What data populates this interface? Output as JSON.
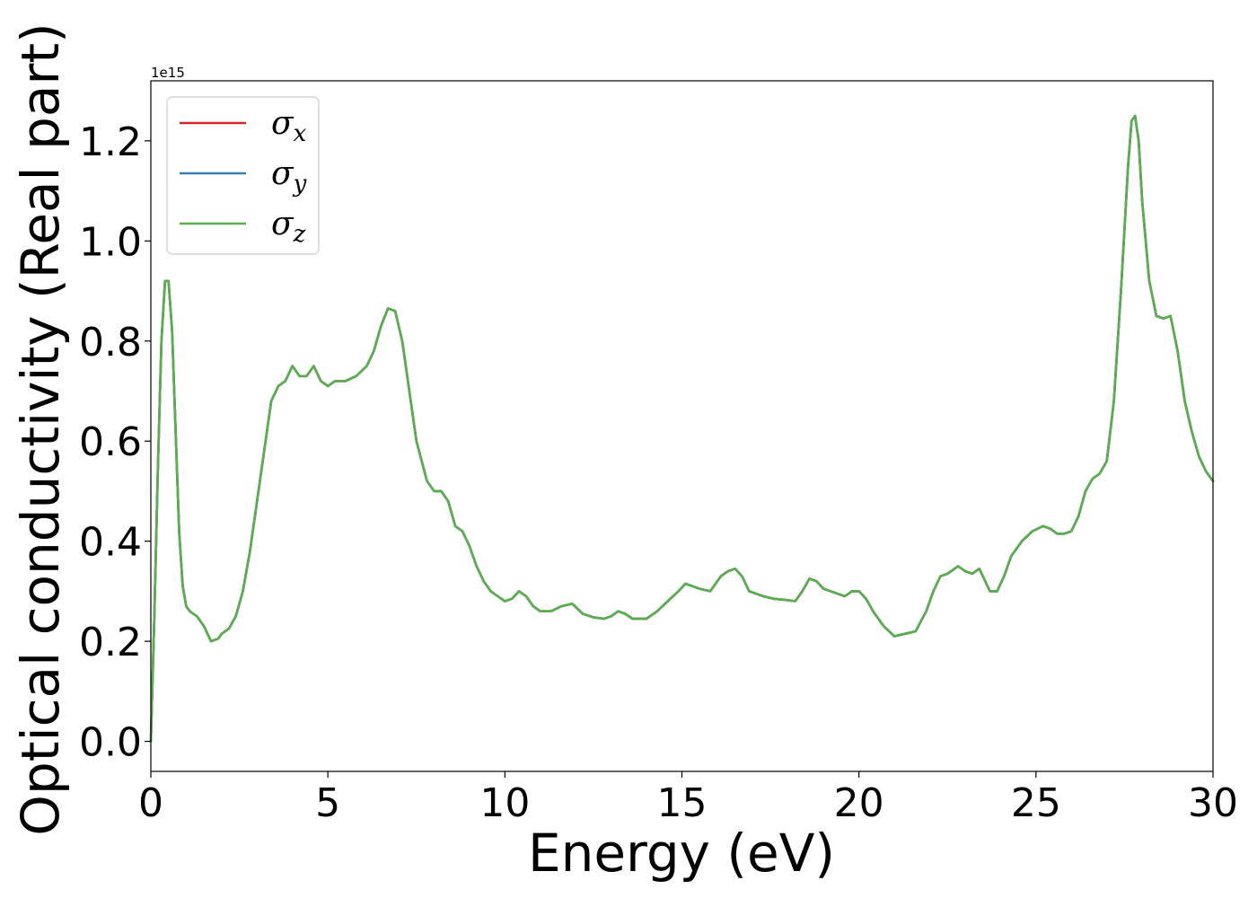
{
  "chart_data": {
    "type": "line",
    "xlabel": "Energy (eV)",
    "ylabel": "Optical conductivity (Real part)",
    "y_offset_label": "1e15",
    "y_scale": 1000000000000000.0,
    "xlim": [
      0,
      30
    ],
    "ylim": [
      -0.06,
      1.32
    ],
    "xticks": [
      0,
      5,
      10,
      15,
      20,
      25,
      30
    ],
    "xtick_labels": [
      "0",
      "5",
      "10",
      "15",
      "20",
      "25",
      "30"
    ],
    "yticks": [
      0.0,
      0.2,
      0.4,
      0.6,
      0.8,
      1.0,
      1.2
    ],
    "ytick_labels": [
      "0.0",
      "0.2",
      "0.4",
      "0.6",
      "0.8",
      "1.0",
      "1.2"
    ],
    "grid": false,
    "legend_position": "top-left",
    "series": [
      {
        "name": "σx",
        "legend_base": "σ",
        "legend_sub": "x",
        "color": "#d62728",
        "x": [
          0,
          0.1,
          0.2,
          0.3,
          0.4,
          0.5,
          0.6,
          0.7,
          0.8,
          0.9,
          1.0,
          1.1,
          1.2,
          1.3,
          1.5,
          1.7,
          1.9,
          2.0,
          2.2,
          2.4,
          2.6,
          2.8,
          3.0,
          3.2,
          3.4,
          3.6,
          3.8,
          4.0,
          4.2,
          4.4,
          4.6,
          4.8,
          5.0,
          5.2,
          5.5,
          5.8,
          6.1,
          6.3,
          6.5,
          6.7,
          6.9,
          7.1,
          7.3,
          7.5,
          7.8,
          8.0,
          8.2,
          8.4,
          8.6,
          8.8,
          9.0,
          9.2,
          9.4,
          9.6,
          9.8,
          10.0,
          10.2,
          10.4,
          10.6,
          10.8,
          11.0,
          11.3,
          11.6,
          11.9,
          12.2,
          12.5,
          12.8,
          13.0,
          13.2,
          13.4,
          13.6,
          14.0,
          14.3,
          14.6,
          14.9,
          15.1,
          15.3,
          15.5,
          15.8,
          16.1,
          16.3,
          16.5,
          16.7,
          16.9,
          17.1,
          17.3,
          17.6,
          17.9,
          18.2,
          18.4,
          18.6,
          18.8,
          19.0,
          19.2,
          19.4,
          19.6,
          19.8,
          20.0,
          20.2,
          20.4,
          20.7,
          21.0,
          21.3,
          21.6,
          21.9,
          22.1,
          22.3,
          22.5,
          22.8,
          23.0,
          23.2,
          23.4,
          23.7,
          23.9,
          24.1,
          24.3,
          24.6,
          24.9,
          25.2,
          25.4,
          25.6,
          25.8,
          26.0,
          26.2,
          26.4,
          26.6,
          26.8,
          27.0,
          27.2,
          27.4,
          27.6,
          27.7,
          27.8,
          27.9,
          28.0,
          28.2,
          28.4,
          28.6,
          28.8,
          29.0,
          29.2,
          29.4,
          29.6,
          29.8,
          30.0
        ],
        "y": [
          0.0,
          0.25,
          0.55,
          0.8,
          0.92,
          0.92,
          0.82,
          0.62,
          0.42,
          0.31,
          0.27,
          0.26,
          0.255,
          0.25,
          0.23,
          0.2,
          0.205,
          0.215,
          0.225,
          0.25,
          0.3,
          0.38,
          0.48,
          0.58,
          0.68,
          0.71,
          0.72,
          0.75,
          0.73,
          0.73,
          0.75,
          0.72,
          0.71,
          0.72,
          0.72,
          0.73,
          0.75,
          0.78,
          0.83,
          0.865,
          0.86,
          0.8,
          0.7,
          0.6,
          0.52,
          0.5,
          0.5,
          0.48,
          0.43,
          0.42,
          0.39,
          0.35,
          0.32,
          0.3,
          0.29,
          0.28,
          0.285,
          0.3,
          0.29,
          0.27,
          0.26,
          0.26,
          0.27,
          0.275,
          0.255,
          0.248,
          0.245,
          0.25,
          0.26,
          0.255,
          0.245,
          0.245,
          0.26,
          0.28,
          0.3,
          0.315,
          0.31,
          0.305,
          0.3,
          0.33,
          0.34,
          0.345,
          0.33,
          0.3,
          0.295,
          0.29,
          0.285,
          0.283,
          0.28,
          0.3,
          0.325,
          0.32,
          0.305,
          0.3,
          0.295,
          0.29,
          0.3,
          0.3,
          0.285,
          0.26,
          0.23,
          0.21,
          0.215,
          0.22,
          0.26,
          0.3,
          0.33,
          0.335,
          0.35,
          0.34,
          0.335,
          0.345,
          0.3,
          0.3,
          0.33,
          0.37,
          0.4,
          0.42,
          0.43,
          0.425,
          0.415,
          0.415,
          0.42,
          0.45,
          0.5,
          0.525,
          0.535,
          0.56,
          0.68,
          0.9,
          1.15,
          1.24,
          1.25,
          1.2,
          1.08,
          0.92,
          0.85,
          0.845,
          0.85,
          0.78,
          0.68,
          0.62,
          0.57,
          0.54,
          0.52
        ]
      },
      {
        "name": "σy",
        "legend_base": "σ",
        "legend_sub": "y",
        "color": "#3a7fb4",
        "same_as": "σx"
      },
      {
        "name": "σz",
        "legend_base": "σ",
        "legend_sub": "z",
        "color": "#5aae4e",
        "same_as": "σx"
      }
    ]
  }
}
